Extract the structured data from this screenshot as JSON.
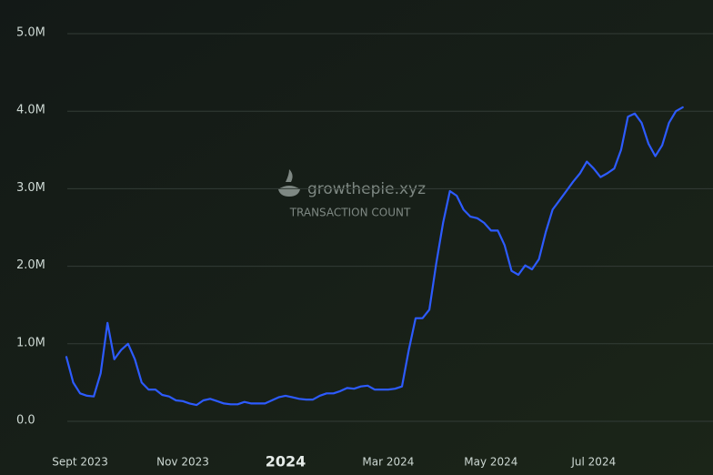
{
  "chart_data": {
    "type": "line",
    "watermark": {
      "brand": "growthepie.xyz",
      "metric": "TRANSACTION COUNT"
    },
    "categories": [
      null,
      null,
      "Sept 2023",
      null,
      null,
      null,
      null,
      null,
      null,
      null,
      null,
      null,
      null,
      null,
      null,
      null,
      null,
      "Nov 2023",
      null,
      null,
      null,
      null,
      null,
      null,
      null,
      null,
      null,
      null,
      null,
      null,
      null,
      null,
      "2024",
      null,
      null,
      null,
      null,
      null,
      null,
      null,
      null,
      null,
      null,
      null,
      null,
      null,
      null,
      "Mar 2024",
      null,
      null,
      null,
      null,
      null,
      null,
      null,
      null,
      null,
      null,
      null,
      null,
      null,
      null,
      "May 2024",
      null,
      null,
      null,
      null,
      null,
      null,
      null,
      null,
      null,
      null,
      null,
      null,
      null,
      null,
      "Jul 2024",
      null,
      null,
      null,
      null,
      null,
      null,
      null,
      null,
      null,
      null,
      null,
      null,
      null
    ],
    "series": [
      {
        "color": "#2d5bff",
        "values": [
          0.83,
          0.5,
          0.36,
          0.33,
          0.32,
          0.62,
          1.27,
          0.8,
          0.92,
          1.0,
          0.8,
          0.5,
          0.41,
          0.41,
          0.34,
          0.32,
          0.27,
          0.26,
          0.23,
          0.21,
          0.27,
          0.29,
          0.26,
          0.23,
          0.22,
          0.22,
          0.25,
          0.23,
          0.23,
          0.23,
          0.27,
          0.31,
          0.33,
          0.31,
          0.29,
          0.28,
          0.28,
          0.33,
          0.36,
          0.36,
          0.39,
          0.43,
          0.42,
          0.45,
          0.46,
          0.41,
          0.41,
          0.41,
          0.42,
          0.45,
          0.92,
          1.33,
          1.33,
          1.44,
          2.03,
          2.56,
          2.97,
          2.91,
          2.73,
          2.64,
          2.62,
          2.56,
          2.46,
          2.46,
          2.27,
          1.94,
          1.89,
          2.01,
          1.96,
          2.09,
          2.44,
          2.73,
          2.85,
          2.97,
          3.09,
          3.2,
          3.35,
          3.26,
          3.15,
          3.2,
          3.26,
          3.5,
          3.93,
          3.97,
          3.85,
          3.58,
          3.42,
          3.56,
          3.85,
          4.0,
          4.05
        ]
      }
    ],
    "ylim": [
      0,
      5
    ],
    "yticks": [
      {
        "value": 0,
        "label": "0.0"
      },
      {
        "value": 1,
        "label": "1.0M"
      },
      {
        "value": 2,
        "label": "2.0M"
      },
      {
        "value": 3,
        "label": "3.0M"
      },
      {
        "value": 4,
        "label": "4.0M"
      },
      {
        "value": 5,
        "label": "5.0M"
      }
    ],
    "grid": true
  }
}
